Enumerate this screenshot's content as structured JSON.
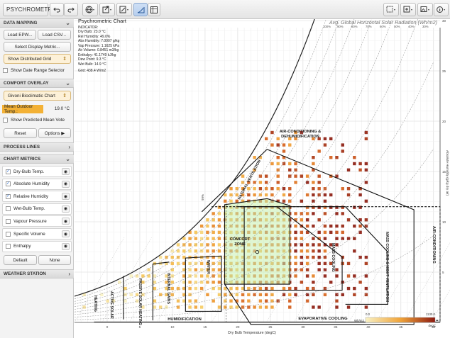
{
  "toolbar": {
    "title": "PSYCHROMETRY"
  },
  "sidebar": {
    "data_mapping": {
      "heading": "DATA MAPPING",
      "load_epw": "Load EPW...",
      "load_csv": "Load CSV...",
      "select_metric": "Select Display Metric...",
      "grid_select": "Show Distributed Grid",
      "date_range": "Show Date Range Selector"
    },
    "comfort": {
      "heading": "COMFORT OVERLAY",
      "chart_select": "Givoni Bioclimatic Chart",
      "mean_label": "Mean Outdoor Temp.:",
      "mean_value": "19.0 °C",
      "pmv_label": "Show Predicted Mean Vote",
      "reset": "Reset",
      "options": "Options"
    },
    "process_lines": {
      "heading": "PROCESS LINES"
    },
    "chart_metrics": {
      "heading": "CHART METRICS",
      "items": [
        {
          "label": "Dry-Bulb Temp.",
          "checked": true
        },
        {
          "label": "Absolute Humidity",
          "checked": true
        },
        {
          "label": "Relative Humidity",
          "checked": true
        },
        {
          "label": "Wet-Bulb Temp.",
          "checked": false
        },
        {
          "label": "Vapour Pressure",
          "checked": false
        },
        {
          "label": "Specific Volume",
          "checked": false
        },
        {
          "label": "Enthalpy",
          "checked": false
        }
      ],
      "default": "Default",
      "none": "None"
    },
    "weather_station": {
      "heading": "WEATHER STATION"
    }
  },
  "chart": {
    "title": "Psychrometric Chart",
    "indicator": "INDICATOR:",
    "readouts": [
      "Dry Bulb: 23.0 °C",
      "Rel Humidity: 49.0%",
      "Abs Humidity: 7.0007 g/kg",
      "Vap Pressure: 1.1625 kPa",
      "Air Volume: 0.8451 m3/kg",
      "Enthalpy: 41.1749 kJ/kg",
      "Dew Point: 9.3 °C",
      "Wet Bulb: 14.9 °C"
    ],
    "grid_readout": "Grid: 438.4 W/m2",
    "solar_title": "Avg. Global Horizontal Solar Radiation (Wh/m2)",
    "x_axis_label": "Dry Bulb Temperature (degC)",
    "y_axis_label": "Absolute Humidity (g/kg dry air)",
    "x_ticks": [
      "0",
      "5",
      "10",
      "15",
      "20",
      "25",
      "30",
      "35",
      "40",
      "45",
      "50"
    ],
    "y_ticks": [
      "5",
      "10",
      "15",
      "20",
      "25",
      "30"
    ],
    "rh_labels": [
      "100%",
      "90%",
      "80%",
      "70%",
      "60%",
      "50%",
      "40%",
      "30%"
    ],
    "zones": {
      "air_conditioning_dehum": "AIR-CONDITIONING & DEHUMIDIFICATION",
      "natural_ventilation": "NATURAL VENTILATION",
      "comfort_zone": "COMFORT ZONE",
      "mass_cooling": "MASS COOLING",
      "mass_cooling_night": "MASS COOLING & NIGHT VENTILATION",
      "air_conditioning": "AIR-CONDITIONING",
      "evaporative_cooling": "EVAPORATIVE COOLING",
      "humidification": "HUMIDIFICATION",
      "heating": "HEATING",
      "active_solar": "ACTIVE SOLAR",
      "passive_solar": "PASSIVE SOLAR HEATING",
      "internal_gains": "INTERNAL GAINS",
      "winter": "WINTER",
      "summer": "99%"
    },
    "legend": {
      "min": "0.0",
      "max": "1130.0",
      "unit": "Wh/m2",
      "unit_right": "degC"
    },
    "colors": {
      "low": "#f8f1c4",
      "mid": "#f0a43a",
      "high": "#8e1b10",
      "comfort": "#c7f0b0",
      "zone_line": "#111111"
    }
  }
}
